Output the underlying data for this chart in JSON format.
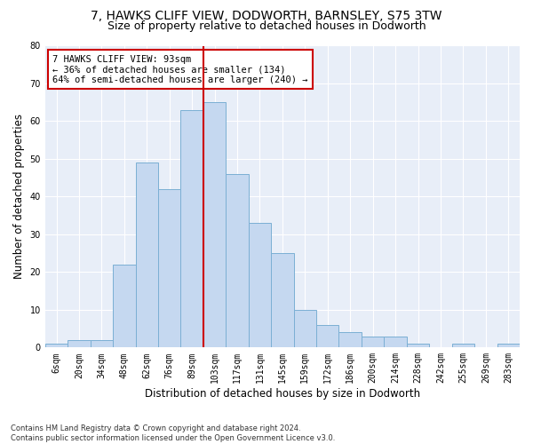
{
  "title": "7, HAWKS CLIFF VIEW, DODWORTH, BARNSLEY, S75 3TW",
  "subtitle": "Size of property relative to detached houses in Dodworth",
  "xlabel": "Distribution of detached houses by size in Dodworth",
  "ylabel": "Number of detached properties",
  "bin_labels": [
    "6sqm",
    "20sqm",
    "34sqm",
    "48sqm",
    "62sqm",
    "76sqm",
    "89sqm",
    "103sqm",
    "117sqm",
    "131sqm",
    "145sqm",
    "159sqm",
    "172sqm",
    "186sqm",
    "200sqm",
    "214sqm",
    "228sqm",
    "242sqm",
    "255sqm",
    "269sqm",
    "283sqm"
  ],
  "bar_heights": [
    1,
    2,
    2,
    22,
    49,
    42,
    63,
    65,
    46,
    33,
    25,
    10,
    6,
    4,
    3,
    3,
    1,
    0,
    1,
    0,
    1
  ],
  "bar_color": "#c5d8f0",
  "bar_edge_color": "#7bafd4",
  "vline_x_idx": 6,
  "vline_color": "#cc0000",
  "annotation_text": "7 HAWKS CLIFF VIEW: 93sqm\n← 36% of detached houses are smaller (134)\n64% of semi-detached houses are larger (240) →",
  "annotation_box_color": "#ffffff",
  "annotation_box_edge_color": "#cc0000",
  "ylim": [
    0,
    80
  ],
  "yticks": [
    0,
    10,
    20,
    30,
    40,
    50,
    60,
    70,
    80
  ],
  "background_color": "#e8eef8",
  "footnote": "Contains HM Land Registry data © Crown copyright and database right 2024.\nContains public sector information licensed under the Open Government Licence v3.0.",
  "title_fontsize": 10,
  "subtitle_fontsize": 9,
  "xlabel_fontsize": 8.5,
  "ylabel_fontsize": 8.5,
  "tick_fontsize": 7,
  "annot_fontsize": 7.5,
  "footnote_fontsize": 6
}
